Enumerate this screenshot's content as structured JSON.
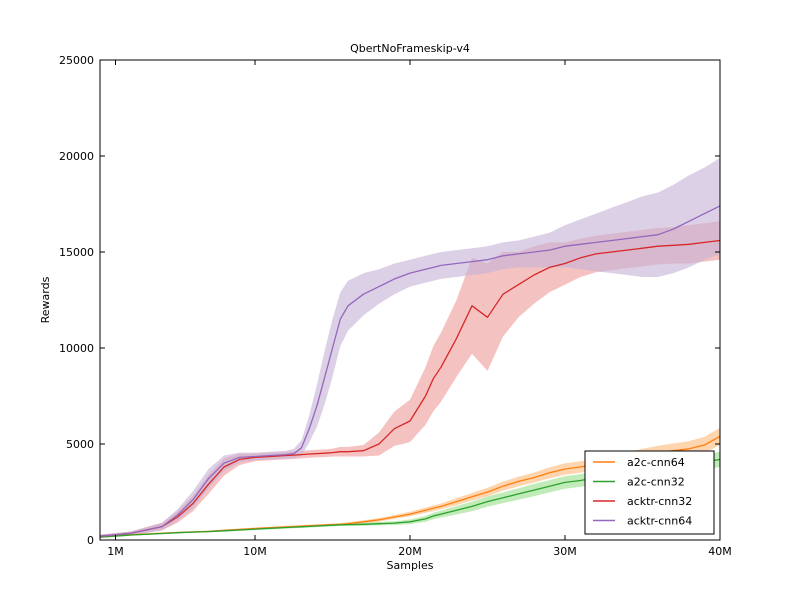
{
  "chart_data": {
    "type": "line",
    "title": "QbertNoFrameskip-v4",
    "xlabel": "Samples",
    "ylabel": "Rewards",
    "xlim": [
      0.0,
      40.0
    ],
    "ylim": [
      0,
      25000
    ],
    "x_unit": "M samples",
    "x_ticks": [
      1,
      10,
      20,
      30,
      40
    ],
    "x_tick_labels": [
      "1M",
      "10M",
      "20M",
      "30M",
      "40M"
    ],
    "y_ticks": [
      0,
      5000,
      10000,
      15000,
      20000,
      25000
    ],
    "y_tick_labels": [
      "0",
      "5000",
      "10000",
      "15000",
      "20000",
      "25000"
    ],
    "grid": false,
    "legend_position": "bottom-right",
    "x": [
      0.0,
      2.0,
      4.0,
      5.0,
      6.0,
      7.0,
      8.0,
      9.0,
      10.0,
      11.0,
      12.0,
      12.5,
      13.0,
      13.5,
      14.0,
      14.5,
      15.0,
      15.5,
      16.0,
      17.0,
      18.0,
      19.0,
      20.0,
      21.0,
      21.5,
      22.0,
      23.0,
      24.0,
      25.0,
      26.0,
      27.0,
      28.0,
      29.0,
      30.0,
      31.0,
      32.0,
      33.0,
      34.0,
      35.0,
      36.0,
      37.0,
      38.0,
      39.0,
      40.0
    ],
    "series": [
      {
        "name": "a2c-cnn64",
        "color": "#ff7f0e",
        "band_color": "#ffb97a",
        "values": [
          150,
          270,
          350,
          390,
          420,
          450,
          500,
          550,
          600,
          640,
          680,
          700,
          720,
          740,
          760,
          780,
          800,
          820,
          850,
          950,
          1050,
          1200,
          1350,
          1550,
          1650,
          1750,
          2000,
          2250,
          2500,
          2800,
          3050,
          3250,
          3500,
          3700,
          3800,
          3950,
          4100,
          4250,
          4400,
          4550,
          4650,
          4750,
          4950,
          5400
        ],
        "band_halfwidth": [
          40,
          40,
          40,
          40,
          40,
          40,
          50,
          50,
          50,
          50,
          60,
          60,
          60,
          60,
          60,
          60,
          60,
          60,
          70,
          80,
          90,
          100,
          120,
          140,
          150,
          150,
          180,
          200,
          220,
          240,
          250,
          260,
          280,
          300,
          300,
          300,
          320,
          340,
          350,
          360,
          380,
          400,
          420,
          450
        ]
      },
      {
        "name": "a2c-cnn32",
        "color": "#2ca02c",
        "band_color": "#98df8a",
        "values": [
          150,
          260,
          340,
          380,
          410,
          440,
          480,
          520,
          570,
          610,
          650,
          670,
          690,
          710,
          730,
          750,
          770,
          790,
          800,
          820,
          850,
          880,
          950,
          1100,
          1250,
          1350,
          1550,
          1750,
          2000,
          2200,
          2400,
          2600,
          2800,
          3000,
          3100,
          3250,
          3400,
          3550,
          3650,
          3750,
          3850,
          3950,
          4050,
          4200
        ],
        "band_halfwidth": [
          40,
          40,
          40,
          40,
          40,
          40,
          50,
          50,
          50,
          50,
          60,
          60,
          60,
          60,
          60,
          60,
          60,
          60,
          70,
          80,
          90,
          100,
          120,
          150,
          170,
          180,
          220,
          250,
          270,
          280,
          300,
          320,
          320,
          330,
          330,
          330,
          340,
          340,
          350,
          350,
          350,
          360,
          380,
          400
        ]
      },
      {
        "name": "acktr-cnn32",
        "color": "#d62728",
        "band_color": "#ee9a9a",
        "values": [
          200,
          350,
          700,
          1200,
          1900,
          2900,
          3800,
          4200,
          4300,
          4350,
          4400,
          4420,
          4450,
          4480,
          4500,
          4520,
          4550,
          4600,
          4600,
          4650,
          5000,
          5800,
          6200,
          7500,
          8400,
          9000,
          10500,
          12200,
          11600,
          12800,
          13300,
          13800,
          14200,
          14400,
          14700,
          14900,
          15000,
          15100,
          15200,
          15300,
          15350,
          15400,
          15500,
          15600
        ],
        "band_halfwidth": [
          80,
          100,
          200,
          300,
          400,
          500,
          450,
          300,
          200,
          200,
          200,
          200,
          200,
          200,
          200,
          200,
          200,
          250,
          250,
          300,
          600,
          900,
          1100,
          1500,
          1700,
          1800,
          2000,
          2500,
          2800,
          2200,
          1700,
          1500,
          1300,
          1100,
          1000,
          950,
          950,
          950,
          950,
          950,
          950,
          1000,
          1000,
          1000
        ]
      },
      {
        "name": "acktr-cnn64",
        "color": "#9467bd",
        "band_color": "#c5b0d5",
        "values": [
          200,
          350,
          700,
          1300,
          2100,
          3200,
          4000,
          4300,
          4350,
          4400,
          4450,
          4500,
          4800,
          5800,
          7000,
          8500,
          10000,
          11500,
          12200,
          12800,
          13200,
          13600,
          13900,
          14100,
          14200,
          14300,
          14400,
          14500,
          14600,
          14800,
          14900,
          15000,
          15100,
          15300,
          15400,
          15500,
          15600,
          15700,
          15800,
          15900,
          16200,
          16600,
          17000,
          17400
        ],
        "band_halfwidth": [
          80,
          100,
          200,
          300,
          450,
          500,
          400,
          250,
          200,
          200,
          200,
          250,
          400,
          700,
          1100,
          1400,
          1500,
          1400,
          1300,
          1100,
          900,
          800,
          700,
          700,
          700,
          700,
          700,
          700,
          700,
          700,
          700,
          800,
          900,
          1100,
          1300,
          1500,
          1700,
          1900,
          2100,
          2200,
          2300,
          2400,
          2400,
          2500
        ]
      }
    ]
  }
}
